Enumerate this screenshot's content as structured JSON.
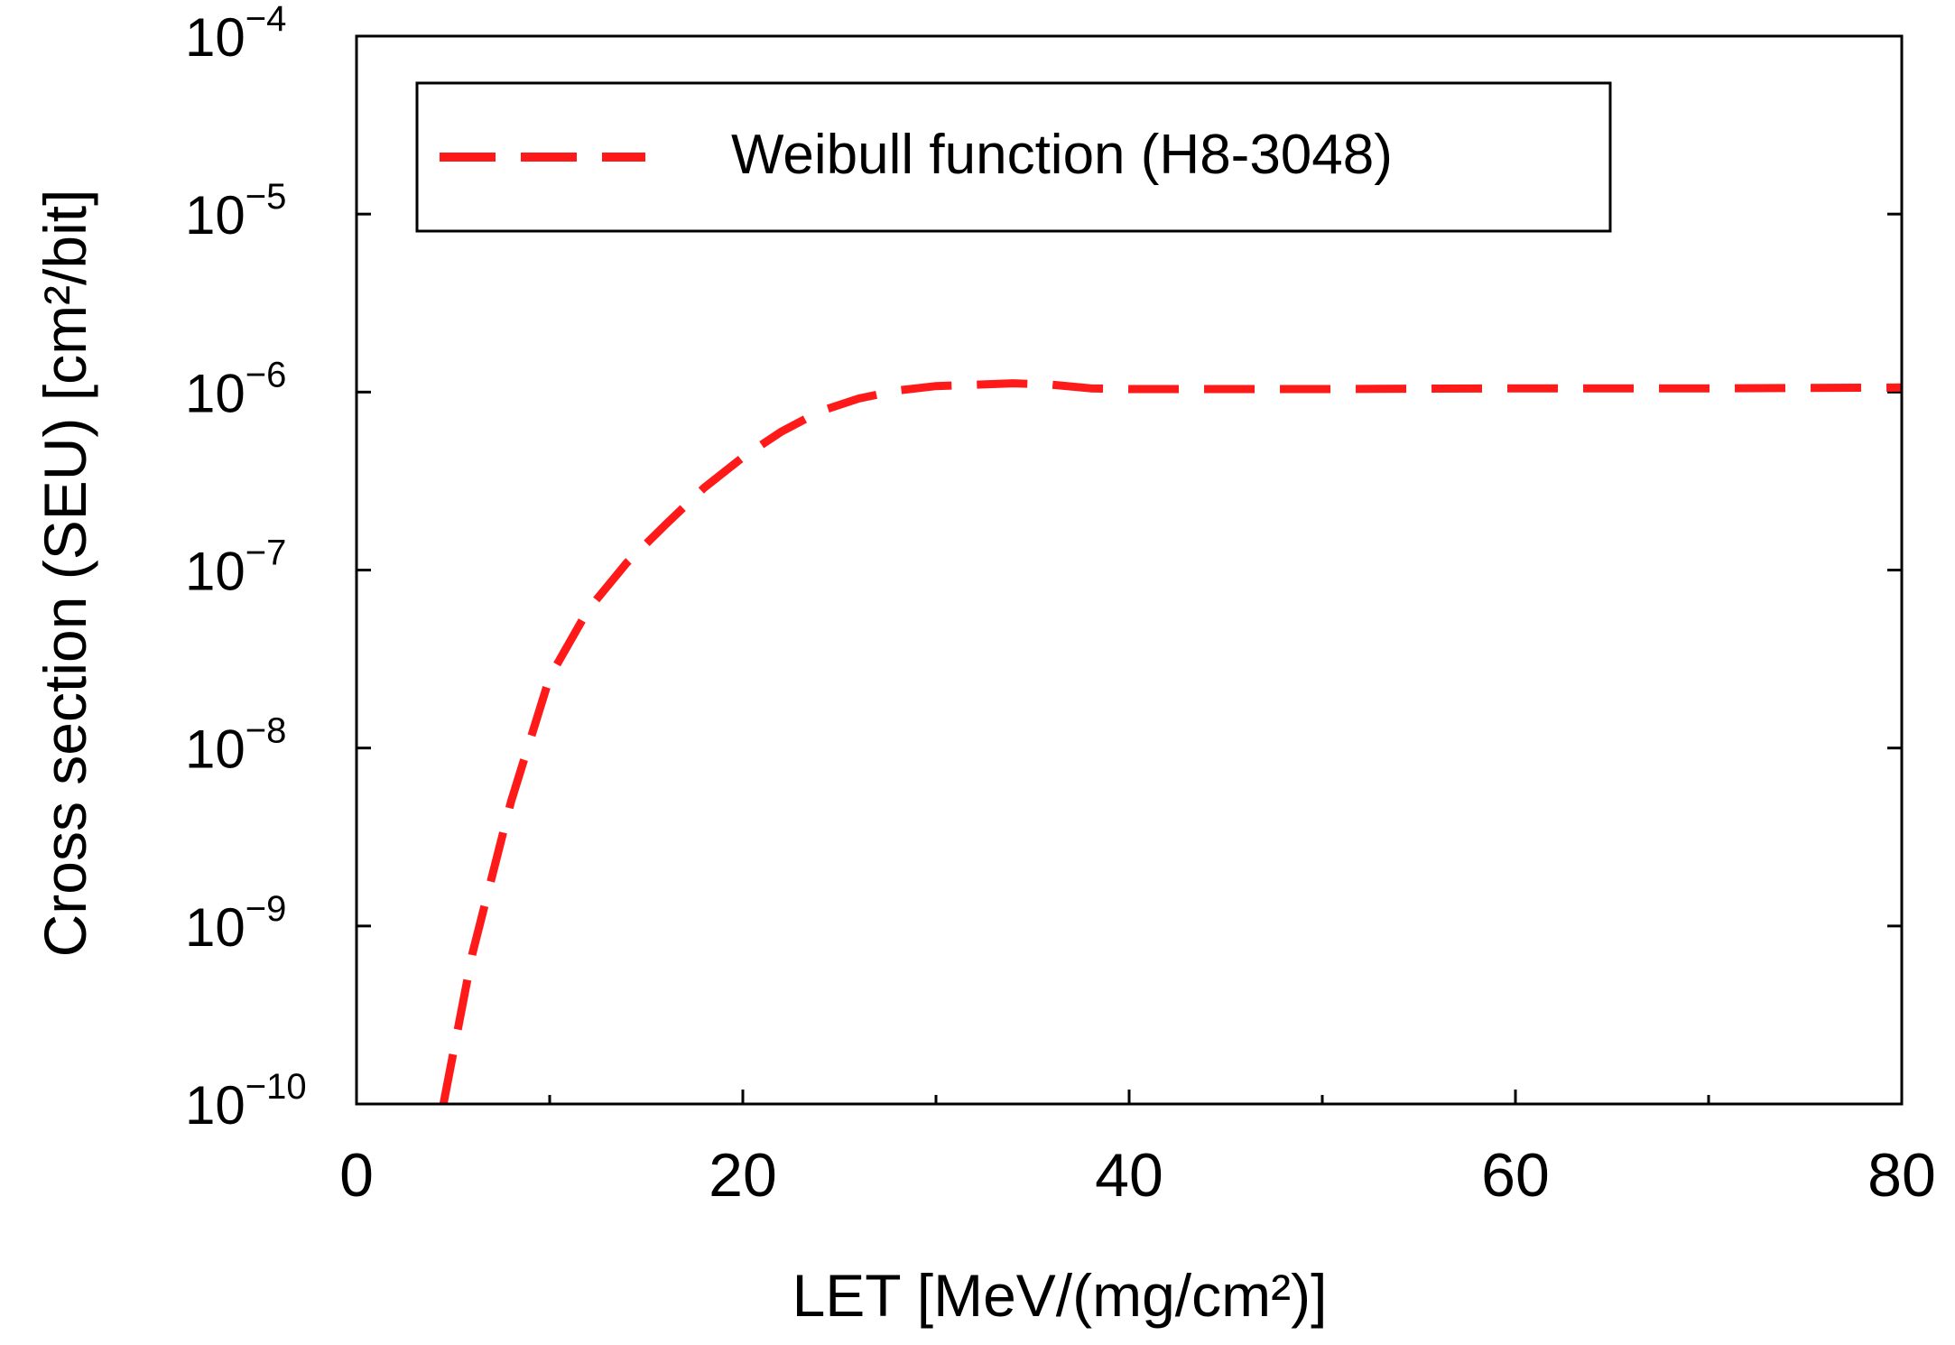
{
  "chart_data": {
    "type": "line",
    "title": "",
    "xlabel": "LET [MeV/(mg/cm²)]",
    "ylabel": "Cross section (SEU) [cm²/bit]",
    "xlim": [
      0,
      80
    ],
    "ylim": [
      1e-10,
      0.0001
    ],
    "yscale": "log",
    "grid": false,
    "legend_position": "top",
    "x_ticks": [
      {
        "value": 0,
        "label": "0"
      },
      {
        "value": 20,
        "label": "20"
      },
      {
        "value": 40,
        "label": "40"
      },
      {
        "value": 60,
        "label": "60"
      },
      {
        "value": 80,
        "label": "80"
      }
    ],
    "x_minor_ticks": [
      10,
      30,
      50,
      70
    ],
    "y_ticks": [
      {
        "value": 1e-10,
        "base": "10",
        "exp": "−10"
      },
      {
        "value": 1e-09,
        "base": "10",
        "exp": "−9"
      },
      {
        "value": 1e-08,
        "base": "10",
        "exp": "−8"
      },
      {
        "value": 1e-07,
        "base": "10",
        "exp": "−7"
      },
      {
        "value": 1e-06,
        "base": "10",
        "exp": "−6"
      },
      {
        "value": 1e-05,
        "base": "10",
        "exp": "−5"
      },
      {
        "value": 0.0001,
        "base": "10",
        "exp": "−4"
      }
    ],
    "series": [
      {
        "name": "Weibull function (H8-3048)",
        "color": "#ff1a1a",
        "style": "dashed",
        "x": [
          4.5,
          6,
          8,
          10,
          12,
          14,
          16,
          18,
          20,
          22,
          24,
          26,
          28,
          30,
          32,
          34,
          36,
          38,
          40,
          50,
          60,
          70,
          80
        ],
        "y": [
          1e-10,
          7e-10,
          5e-09,
          2.5e-08,
          6e-08,
          1.1e-07,
          1.8e-07,
          2.9e-07,
          4.3e-07,
          6e-07,
          7.8e-07,
          9.2e-07,
          1.02e-06,
          1.08e-06,
          1.1e-06,
          1.12e-06,
          1.1e-06,
          1.05e-06,
          1.04e-06,
          1.04e-06,
          1.05e-06,
          1.05e-06,
          1.06e-06
        ]
      }
    ]
  }
}
